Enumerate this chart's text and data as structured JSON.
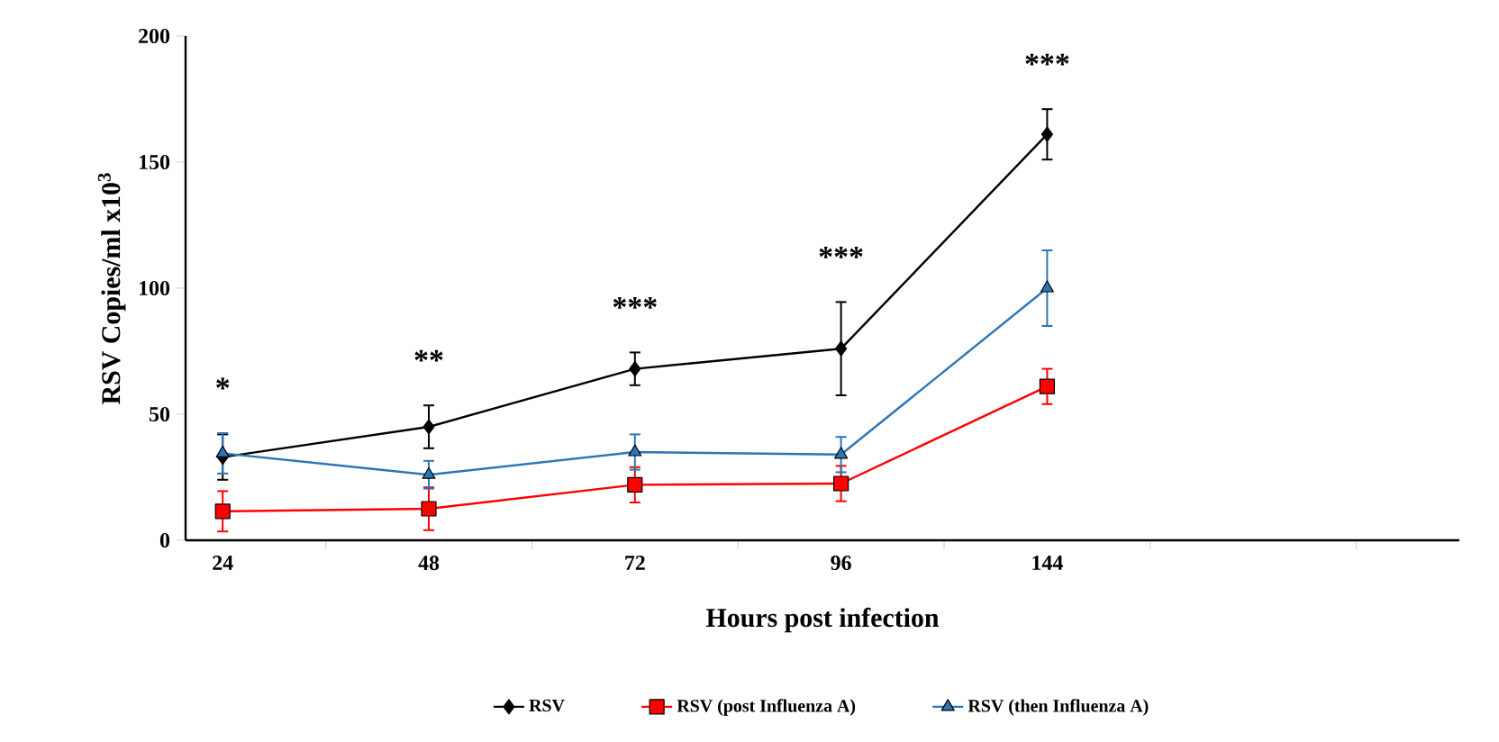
{
  "chart_data": {
    "type": "line",
    "xlabel": "Hours post infection",
    "ylabel": "RSV Copies/ml x10$^{3}$",
    "categories": [
      "24",
      "48",
      "72",
      "96",
      "144"
    ],
    "ylim": [
      0,
      200
    ],
    "yticks": [
      0,
      50,
      100,
      150,
      200
    ],
    "grid": false,
    "legend": "bottom",
    "series": [
      {
        "name": "RSV",
        "color": "#000000",
        "marker": "diamond",
        "values": [
          33,
          45,
          68,
          76,
          161
        ],
        "errors": [
          9,
          8.5,
          6.5,
          18.5,
          10
        ]
      },
      {
        "name": "RSV (post Influenza A)",
        "color": "#ff0000",
        "marker": "square",
        "values": [
          11.5,
          12.5,
          22,
          22.5,
          61
        ],
        "errors": [
          8,
          8.5,
          7,
          7,
          7
        ]
      },
      {
        "name": "RSV (then Influenza A)",
        "color": "#2e75b6",
        "marker": "triangle",
        "values": [
          34.5,
          26,
          35,
          34,
          100
        ],
        "errors": [
          8,
          5.5,
          7,
          7,
          15
        ]
      }
    ],
    "annotations": [
      "*",
      "**",
      "***",
      "***",
      "***"
    ]
  }
}
